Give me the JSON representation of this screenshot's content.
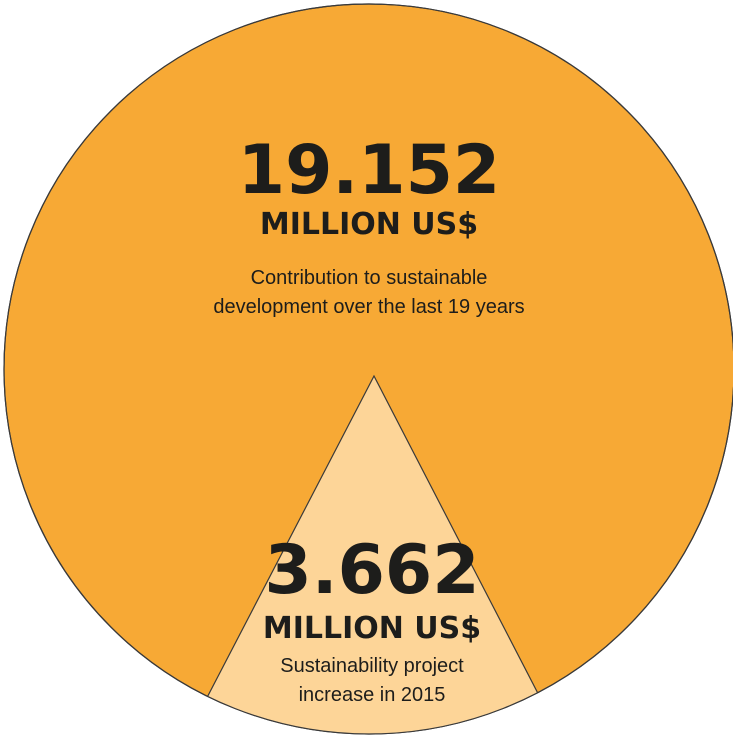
{
  "colors": {
    "circle_fill": "#f7a935",
    "triangle_fill": "#fdd598",
    "outline": "#3a3a3a",
    "text": "#1d1d1b"
  },
  "total": {
    "value": "19.152",
    "unit": "MILLION US$",
    "description_line1": "Contribution to sustainable",
    "description_line2": "development over the last 19 years"
  },
  "increase": {
    "value": "3.662",
    "unit": "MILLION US$",
    "description_line1": "Sustainability project",
    "description_line2": "increase in 2015"
  }
}
